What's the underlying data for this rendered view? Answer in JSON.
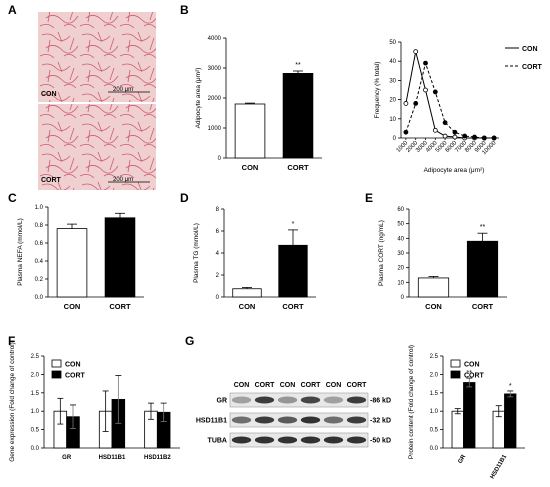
{
  "panels": {
    "A": "A",
    "B": "B",
    "C": "C",
    "D": "D",
    "E": "E",
    "F": "F",
    "G": "G"
  },
  "micrographs": [
    {
      "label": "CON",
      "scale_bar": "200 μm"
    },
    {
      "label": "CORT",
      "scale_bar": "200 μm"
    }
  ],
  "colors": {
    "con_fill": "#ffffff",
    "cort_fill": "#000000",
    "tissue_bg": "#efcfd0",
    "tissue_stain": "#c8485e"
  },
  "chart_data": [
    {
      "id": "B1",
      "type": "bar",
      "ylabel": "Adipocyte area (μm²)",
      "ylim": [
        0,
        4000
      ],
      "yticks": [
        0,
        1000,
        2000,
        3000,
        4000
      ],
      "categories": [
        "CON",
        "CORT"
      ],
      "values": [
        1800,
        2820
      ],
      "errors": [
        30,
        80
      ],
      "annotations": [
        "",
        "**"
      ]
    },
    {
      "id": "B2",
      "type": "line",
      "ylabel": "Frequency (% total)",
      "xlabel": "Adipocyte area (μm²)",
      "ylim": [
        0,
        50
      ],
      "yticks": [
        0,
        10,
        20,
        30,
        40,
        50
      ],
      "x": [
        "1000",
        "2000",
        "3000",
        "4000",
        "5000",
        "6000",
        "7000",
        "8000",
        "9000",
        "10000"
      ],
      "series": [
        {
          "name": "CON",
          "values": [
            18,
            45,
            25,
            4,
            1,
            0.5,
            0,
            0,
            0,
            0
          ]
        },
        {
          "name": "CORT",
          "values": [
            3,
            18,
            39,
            24,
            8,
            3,
            1,
            0.5,
            0,
            0
          ]
        }
      ],
      "legend": "right"
    },
    {
      "id": "C",
      "type": "bar",
      "ylabel": "Plasma NEFA (mmol/L)",
      "ylim": [
        0,
        1.0
      ],
      "yticks": [
        "0.0",
        "0.2",
        "0.4",
        "0.6",
        "0.8",
        "1.0"
      ],
      "categories": [
        "CON",
        "CORT"
      ],
      "values": [
        0.76,
        0.88
      ],
      "errors": [
        0.05,
        0.05
      ],
      "annotations": [
        "",
        ""
      ]
    },
    {
      "id": "D",
      "type": "bar",
      "ylabel": "Plasma TG (mmol/L)",
      "ylim": [
        0,
        8
      ],
      "yticks": [
        0,
        2,
        4,
        6,
        8
      ],
      "categories": [
        "CON",
        "CORT"
      ],
      "values": [
        0.75,
        4.7
      ],
      "errors": [
        0.12,
        1.4
      ],
      "annotations": [
        "",
        "*"
      ]
    },
    {
      "id": "E",
      "type": "bar",
      "ylabel": "Plasma CORT (ng/mL)",
      "ylim": [
        0,
        60
      ],
      "yticks": [
        0,
        10,
        20,
        30,
        40,
        50,
        60
      ],
      "categories": [
        "CON",
        "CORT"
      ],
      "values": [
        13,
        38
      ],
      "errors": [
        1,
        5.5
      ],
      "annotations": [
        "",
        "**"
      ]
    },
    {
      "id": "F",
      "type": "bar",
      "ylabel": "Gene expression (Fold change of control)",
      "ylim": [
        0,
        2.5
      ],
      "yticks": [
        "0.0",
        "0.5",
        "1.0",
        "1.5",
        "2.0",
        "2.5"
      ],
      "categories": [
        "GR",
        "HSD11B1",
        "HSD11B2"
      ],
      "series": [
        {
          "name": "CON",
          "values": [
            1.0,
            1.0,
            1.0
          ],
          "errors": [
            0.35,
            0.55,
            0.22
          ]
        },
        {
          "name": "CORT",
          "values": [
            0.85,
            1.32,
            0.97
          ],
          "errors": [
            0.32,
            0.65,
            0.25
          ]
        }
      ],
      "legend": "top-left"
    },
    {
      "id": "G2",
      "type": "bar",
      "ylabel": "Protein content (Fold change of control)",
      "ylim": [
        0,
        2.5
      ],
      "yticks": [
        "0.0",
        "0.5",
        "1.0",
        "1.5",
        "2.0",
        "2.5"
      ],
      "categories": [
        "GR",
        "HSD11B1"
      ],
      "series": [
        {
          "name": "CON",
          "values": [
            1.0,
            1.0
          ],
          "errors": [
            0.07,
            0.15
          ]
        },
        {
          "name": "CORT",
          "values": [
            1.78,
            1.47
          ],
          "errors": [
            0.12,
            0.08
          ]
        }
      ],
      "annotations": [
        "**",
        "*"
      ],
      "legend": "top-left"
    }
  ],
  "western_blot": {
    "lanes": [
      "CON",
      "CORT",
      "CON",
      "CORT",
      "CON",
      "CORT"
    ],
    "rows": [
      {
        "name": "GR",
        "marker": "86 kD",
        "intensities": [
          0.35,
          0.85,
          0.4,
          0.8,
          0.35,
          0.85
        ]
      },
      {
        "name": "HSD11B1",
        "marker": "32 kD",
        "intensities": [
          0.6,
          0.85,
          0.7,
          0.9,
          0.6,
          0.85
        ]
      },
      {
        "name": "TUBA",
        "marker": "50 kD",
        "intensities": [
          0.9,
          0.9,
          0.9,
          0.9,
          0.9,
          0.9
        ]
      }
    ]
  }
}
